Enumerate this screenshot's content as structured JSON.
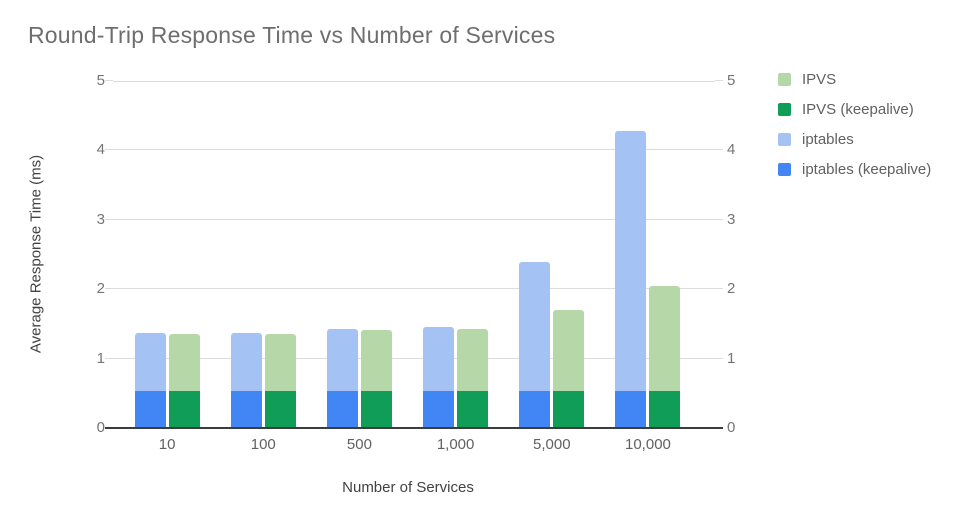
{
  "title": "Round-Trip Response Time vs Number of Services",
  "colors": {
    "ipvs": "#b6d7a8",
    "ipvs_keepalive": "#0f9d58",
    "iptables": "#a4c2f4",
    "iptables_keepalive": "#4285f4",
    "gridline": "#dadce0",
    "axis_line": "#3c3c3c",
    "title_text": "#6e6e6e",
    "tick_text": "#757575",
    "axis_title_text": "#424242"
  },
  "chart_data": {
    "type": "bar",
    "stacked": true,
    "title": "Round-Trip Response Time vs Number of Services",
    "xlabel": "Number of Services",
    "ylabel": "Average Response Time (ms)",
    "ylim": [
      0,
      5
    ],
    "yticks": [
      0,
      1,
      2,
      3,
      4,
      5
    ],
    "grid": true,
    "legend_position": "right",
    "y_axis_sides": [
      "left",
      "right"
    ],
    "categories": [
      "10",
      "100",
      "500",
      "1,000",
      "5,000",
      "10,000"
    ],
    "groups": [
      {
        "name": "iptables",
        "totals": [
          1.37,
          1.37,
          1.43,
          1.46,
          2.39,
          4.28
        ],
        "segments": [
          {
            "series": "iptables (keepalive)",
            "color": "#4285f4",
            "values": [
              0.53,
              0.53,
              0.53,
              0.53,
              0.53,
              0.53
            ]
          },
          {
            "series": "iptables",
            "color": "#a4c2f4",
            "values": [
              0.84,
              0.84,
              0.9,
              0.93,
              1.86,
              3.75
            ]
          }
        ]
      },
      {
        "name": "IPVS",
        "totals": [
          1.36,
          1.36,
          1.41,
          1.42,
          1.7,
          2.04
        ],
        "segments": [
          {
            "series": "IPVS (keepalive)",
            "color": "#0f9d58",
            "values": [
              0.53,
              0.53,
              0.53,
              0.53,
              0.53,
              0.53
            ]
          },
          {
            "series": "IPVS",
            "color": "#b6d7a8",
            "values": [
              0.83,
              0.83,
              0.88,
              0.89,
              1.17,
              1.51
            ]
          }
        ]
      }
    ],
    "legend": [
      {
        "label": "IPVS",
        "color": "#b6d7a8"
      },
      {
        "label": "IPVS (keepalive)",
        "color": "#0f9d58"
      },
      {
        "label": "iptables",
        "color": "#a4c2f4"
      },
      {
        "label": "iptables (keepalive)",
        "color": "#4285f4"
      }
    ]
  }
}
